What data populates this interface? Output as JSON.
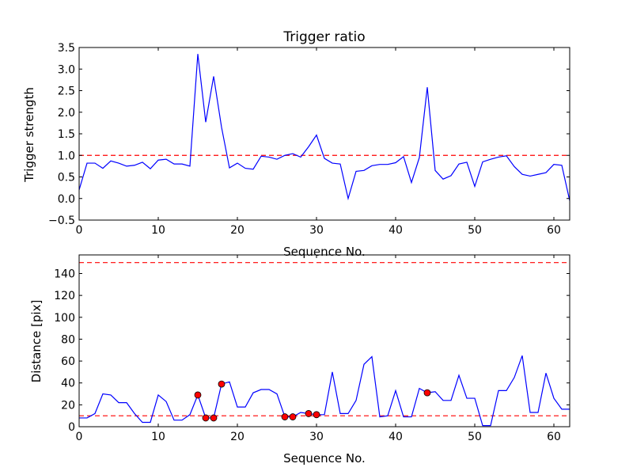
{
  "chart_data": [
    {
      "type": "line",
      "title": "Trigger ratio",
      "xlabel": "Sequence No.",
      "ylabel": "Trigger strength",
      "xlim": [
        0,
        62
      ],
      "ylim": [
        -0.5,
        3.5
      ],
      "xticks": [
        0,
        10,
        20,
        30,
        40,
        50,
        60
      ],
      "yticks": [
        -0.5,
        0.0,
        0.5,
        1.0,
        1.5,
        2.0,
        2.5,
        3.0,
        3.5
      ],
      "ytick_labels": [
        "−0.5",
        "0.0",
        "0.5",
        "1.0",
        "1.5",
        "2.0",
        "2.5",
        "3.0",
        "3.5"
      ],
      "series": [
        {
          "name": "trigger strength",
          "color": "#0000ff",
          "x": [
            0,
            1,
            2,
            3,
            4,
            5,
            6,
            7,
            8,
            9,
            10,
            11,
            12,
            13,
            14,
            15,
            16,
            17,
            18,
            19,
            20,
            21,
            22,
            23,
            24,
            25,
            26,
            27,
            28,
            29,
            30,
            31,
            32,
            33,
            34,
            35,
            36,
            37,
            38,
            39,
            40,
            41,
            42,
            43,
            44,
            45,
            46,
            47,
            48,
            49,
            50,
            51,
            52,
            53,
            54,
            55,
            56,
            57,
            58,
            59,
            60,
            61,
            62
          ],
          "values": [
            0.2,
            0.82,
            0.82,
            0.7,
            0.87,
            0.82,
            0.75,
            0.77,
            0.84,
            0.69,
            0.89,
            0.91,
            0.8,
            0.8,
            0.75,
            3.35,
            1.77,
            2.83,
            1.65,
            0.71,
            0.82,
            0.7,
            0.68,
            0.98,
            0.96,
            0.91,
            1.0,
            1.04,
            0.96,
            1.2,
            1.47,
            0.93,
            0.82,
            0.8,
            0.0,
            0.63,
            0.65,
            0.76,
            0.79,
            0.79,
            0.83,
            0.97,
            0.37,
            0.95,
            2.58,
            0.65,
            0.45,
            0.53,
            0.8,
            0.84,
            0.28,
            0.85,
            0.91,
            0.96,
            0.99,
            0.74,
            0.56,
            0.52,
            0.56,
            0.6,
            0.79,
            0.77,
            -0.05
          ]
        }
      ],
      "reference_lines": [
        {
          "y": 1.0,
          "color": "#ff0000",
          "style": "dashed"
        }
      ]
    },
    {
      "type": "line",
      "title": "",
      "xlabel": "Sequence No.",
      "ylabel": "Distance [pix]",
      "xlim": [
        0,
        62
      ],
      "ylim": [
        0,
        157
      ],
      "xticks": [
        0,
        10,
        20,
        30,
        40,
        50,
        60
      ],
      "yticks": [
        0,
        20,
        40,
        60,
        80,
        100,
        120,
        140
      ],
      "ytick_labels": [
        "0",
        "20",
        "40",
        "60",
        "80",
        "100",
        "120",
        "140"
      ],
      "series": [
        {
          "name": "distance",
          "color": "#0000ff",
          "x": [
            0,
            1,
            2,
            3,
            4,
            5,
            6,
            7,
            8,
            9,
            10,
            11,
            12,
            13,
            14,
            15,
            16,
            17,
            18,
            19,
            20,
            21,
            22,
            23,
            24,
            25,
            26,
            27,
            28,
            29,
            30,
            31,
            32,
            33,
            34,
            35,
            36,
            37,
            38,
            39,
            40,
            41,
            42,
            43,
            44,
            45,
            46,
            47,
            48,
            49,
            50,
            51,
            52,
            53,
            54,
            55,
            56,
            57,
            58,
            59,
            60,
            61,
            62
          ],
          "values": [
            8,
            8,
            12,
            30,
            29,
            22,
            22,
            12,
            4,
            4,
            29,
            23,
            6,
            6,
            11,
            29,
            8,
            8,
            39,
            41,
            18,
            18,
            31,
            34,
            34,
            30,
            9,
            9,
            13,
            12,
            11,
            11,
            50,
            12,
            12,
            24,
            57,
            64,
            9,
            10,
            33,
            9,
            9,
            35,
            31,
            32,
            24,
            24,
            47,
            26,
            26,
            1,
            1,
            33,
            33,
            45,
            65,
            13,
            13,
            49,
            26,
            16,
            16
          ]
        },
        {
          "name": "triggered points",
          "color": "#ff0000",
          "marker": "circle",
          "x": [
            15,
            16,
            17,
            18,
            26,
            27,
            29,
            30,
            44
          ],
          "values": [
            29,
            8,
            8,
            39,
            9,
            9,
            12,
            11,
            31
          ]
        }
      ],
      "reference_lines": [
        {
          "y": 10,
          "color": "#ff0000",
          "style": "dashed"
        },
        {
          "y": 150,
          "color": "#ff0000",
          "style": "dashed"
        }
      ]
    }
  ]
}
